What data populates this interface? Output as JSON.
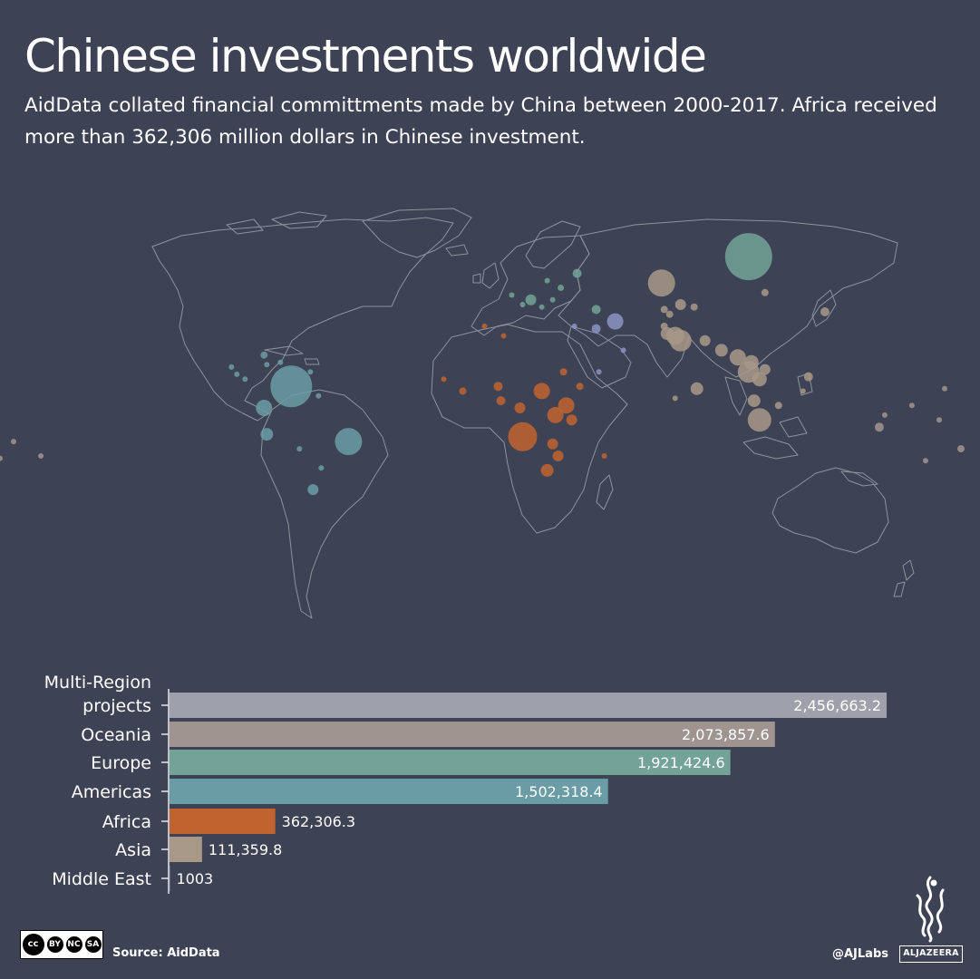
{
  "header": {
    "title": "Chinese investments worldwide",
    "subtitle": "AidData collated financial committments made by China between 2000-2017. Africa received more than 362,306 million dollars in Chinese investment."
  },
  "colors": {
    "background": "#3d4254",
    "land_outline": "#8e93a0",
    "Multi-Region projects": "#9ea1ab",
    "Oceania": "#a09491",
    "Europe": "#72a396",
    "Americas": "#6a9ca5",
    "Africa": "#c1632f",
    "Asia": "#a89888",
    "Middle East": "#8b93c4"
  },
  "chart_data": [
    {
      "type": "bar",
      "orientation": "horizontal",
      "categories": [
        "Multi-Region projects",
        "Oceania",
        "Europe",
        "Americas",
        "Africa",
        "Asia",
        "Middle East"
      ],
      "values": [
        2456663.2,
        2073857.6,
        1921424.6,
        1502318.4,
        362306.3,
        111359.8,
        1003
      ],
      "value_labels": [
        "2,456,663.2",
        "2,073,857.6",
        "1,921,424.6",
        "1,502,318.4",
        "362,306.3",
        "111,359.8",
        "1003"
      ]
    },
    {
      "type": "scatter",
      "subtype": "proportional-symbol map",
      "series": [
        {
          "name": "Europe",
          "points": [
            {
              "lon": 100,
              "lat": 63,
              "size": 26
            },
            {
              "lon": 37,
              "lat": 56,
              "size": 5
            },
            {
              "lon": 31,
              "lat": 50,
              "size": 3.5
            },
            {
              "lon": 28,
              "lat": 45,
              "size": 3
            },
            {
              "lon": 20,
              "lat": 45,
              "size": 6
            },
            {
              "lon": 24,
              "lat": 42,
              "size": 3
            },
            {
              "lon": 17,
              "lat": 43,
              "size": 3
            },
            {
              "lon": 44,
              "lat": 41,
              "size": 5
            },
            {
              "lon": 13,
              "lat": 47,
              "size": 3
            },
            {
              "lon": 26,
              "lat": 53,
              "size": 3
            }
          ]
        },
        {
          "name": "Asia",
          "points": [
            {
              "lon": 68,
              "lat": 52,
              "size": 15
            },
            {
              "lon": 106,
              "lat": 48,
              "size": 4
            },
            {
              "lon": 75,
              "lat": 43,
              "size": 6
            },
            {
              "lon": 69,
              "lat": 41,
              "size": 4
            },
            {
              "lon": 80,
              "lat": 42,
              "size": 4
            },
            {
              "lon": 71,
              "lat": 39,
              "size": 4
            },
            {
              "lon": 69,
              "lat": 34,
              "size": 4
            },
            {
              "lon": 70,
              "lat": 31,
              "size": 7
            },
            {
              "lon": 73,
              "lat": 30,
              "size": 10
            },
            {
              "lon": 75,
              "lat": 28,
              "size": 12
            },
            {
              "lon": 84,
              "lat": 28,
              "size": 6
            },
            {
              "lon": 90,
              "lat": 24,
              "size": 7
            },
            {
              "lon": 96,
              "lat": 21,
              "size": 9
            },
            {
              "lon": 101,
              "lat": 19,
              "size": 8
            },
            {
              "lon": 100,
              "lat": 15,
              "size": 12
            },
            {
              "lon": 104,
              "lat": 12,
              "size": 8
            },
            {
              "lon": 106,
              "lat": 16,
              "size": 6
            },
            {
              "lon": 81,
              "lat": 8,
              "size": 7
            },
            {
              "lon": 73,
              "lat": 4,
              "size": 3
            },
            {
              "lon": 102,
              "lat": 3,
              "size": 7
            },
            {
              "lon": 111,
              "lat": 1,
              "size": 4
            },
            {
              "lon": 104,
              "lat": -5,
              "size": 13
            },
            {
              "lon": 122,
              "lat": 13,
              "size": 5
            },
            {
              "lon": 120,
              "lat": 7,
              "size": 3
            },
            {
              "lon": 128,
              "lat": 40,
              "size": 5
            }
          ]
        },
        {
          "name": "Americas",
          "points": [
            {
              "lon": -68,
              "lat": 9,
              "size": 23
            },
            {
              "lon": -78,
              "lat": 0,
              "size": 9
            },
            {
              "lon": -77,
              "lat": -11,
              "size": 7
            },
            {
              "lon": -47,
              "lat": -14,
              "size": 15
            },
            {
              "lon": -60,
              "lat": -34,
              "size": 6
            },
            {
              "lon": -78,
              "lat": 22,
              "size": 4
            },
            {
              "lon": -77,
              "lat": 18,
              "size": 3
            },
            {
              "lon": -72,
              "lat": 19,
              "size": 3
            },
            {
              "lon": -61,
              "lat": 15,
              "size": 3
            },
            {
              "lon": -85,
              "lat": 12,
              "size": 3
            },
            {
              "lon": -88,
              "lat": 14,
              "size": 3
            },
            {
              "lon": -90,
              "lat": 17,
              "size": 3
            },
            {
              "lon": -58,
              "lat": 5,
              "size": 3
            },
            {
              "lon": -57,
              "lat": -25,
              "size": 3
            },
            {
              "lon": -65,
              "lat": -17,
              "size": 3
            }
          ]
        },
        {
          "name": "Africa",
          "points": [
            {
              "lon": 17,
              "lat": -12,
              "size": 16
            },
            {
              "lon": 29,
              "lat": -3,
              "size": 9
            },
            {
              "lon": 33,
              "lat": 1,
              "size": 9
            },
            {
              "lon": 24,
              "lat": 7,
              "size": 9
            },
            {
              "lon": 35,
              "lat": -5,
              "size": 6
            },
            {
              "lon": 28,
              "lat": -15,
              "size": 6
            },
            {
              "lon": 30,
              "lat": -20,
              "size": 6
            },
            {
              "lon": 26,
              "lat": -26,
              "size": 7
            },
            {
              "lon": 16,
              "lat": 0,
              "size": 6
            },
            {
              "lon": 8,
              "lat": 9,
              "size": 5
            },
            {
              "lon": -5,
              "lat": 7,
              "size": 4
            },
            {
              "lon": -12,
              "lat": 12,
              "size": 3
            },
            {
              "lon": 9,
              "lat": 3,
              "size": 5
            },
            {
              "lon": 38,
              "lat": 9,
              "size": 4
            },
            {
              "lon": 32,
              "lat": 15,
              "size": 4
            },
            {
              "lon": 47,
              "lat": -20,
              "size": 3
            },
            {
              "lon": 3,
              "lat": 34,
              "size": 3
            },
            {
              "lon": 10,
              "lat": 30,
              "size": 3
            }
          ]
        },
        {
          "name": "Oceania",
          "points": [
            {
              "lon": 160,
              "lat": 1,
              "size": 3
            },
            {
              "lon": 170,
              "lat": -5,
              "size": 3
            },
            {
              "lon": 178,
              "lat": -17,
              "size": 4
            },
            {
              "lon": 165,
              "lat": -22,
              "size": 3
            },
            {
              "lon": -175,
              "lat": -21,
              "size": 3
            },
            {
              "lon": -170,
              "lat": -14,
              "size": 3
            },
            {
              "lon": -160,
              "lat": -20,
              "size": 3
            },
            {
              "lon": 148,
              "lat": -8,
              "size": 5
            },
            {
              "lon": 172,
              "lat": 8,
              "size": 3
            },
            {
              "lon": 150,
              "lat": -3,
              "size": 3
            }
          ]
        },
        {
          "name": "Middle East",
          "points": [
            {
              "lon": 51,
              "lat": 36,
              "size": 9
            },
            {
              "lon": 44,
              "lat": 33,
              "size": 5
            },
            {
              "lon": 36,
              "lat": 34,
              "size": 3
            },
            {
              "lon": 54,
              "lat": 24,
              "size": 3
            },
            {
              "lon": 45,
              "lat": 15,
              "size": 3
            }
          ]
        }
      ]
    }
  ],
  "footer": {
    "license_badge": [
      "BY",
      "NC",
      "SA"
    ],
    "source": "Source: AidData",
    "handle": "@AJLabs",
    "logo_wordmark": "ALJAZEERA"
  }
}
